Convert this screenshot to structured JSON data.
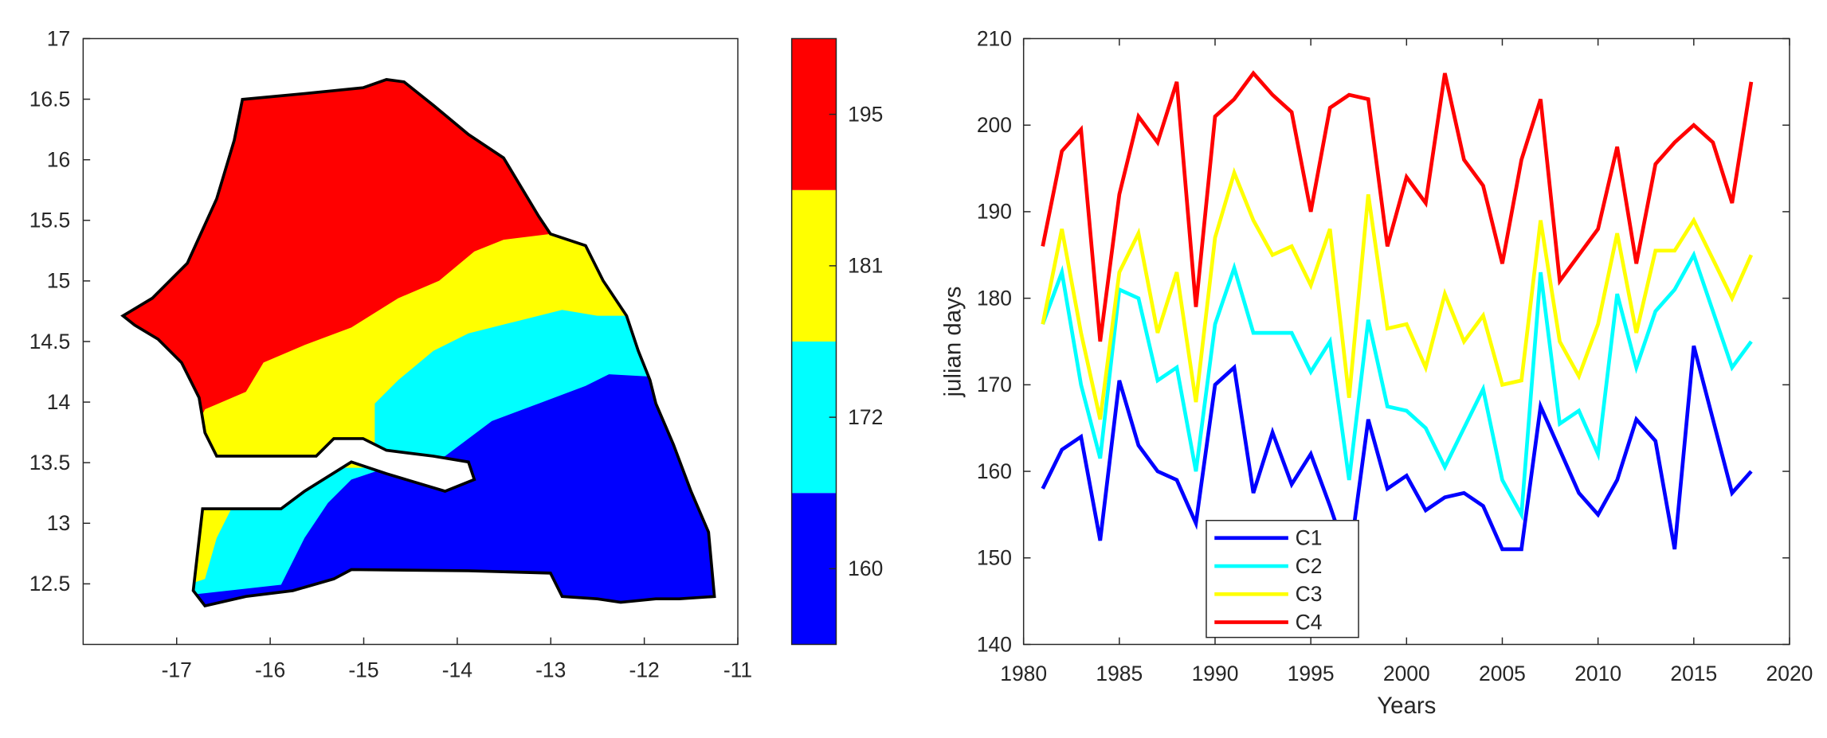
{
  "chart_data": [
    {
      "type": "heatmap",
      "title": "",
      "xlabel": "",
      "ylabel": "",
      "xlim": [
        -18,
        -11
      ],
      "ylim": [
        12,
        17
      ],
      "xticks": [
        "-17",
        "-16",
        "-15",
        "-14",
        "-13",
        "-12",
        "-11"
      ],
      "yticks": [
        "12.5",
        "13",
        "13.5",
        "14",
        "14.5",
        "15",
        "15.5",
        "16",
        "16.5",
        "17"
      ],
      "colorbar": {
        "levels": [
          {
            "label": "160",
            "color": "#0000ff"
          },
          {
            "label": "172",
            "color": "#00ffff"
          },
          {
            "label": "181",
            "color": "#ffff00"
          },
          {
            "label": "195",
            "color": "#ff0000"
          }
        ]
      }
    },
    {
      "type": "line",
      "title": "",
      "xlabel": "Years",
      "ylabel": "julian days",
      "xlim": [
        1980,
        2020
      ],
      "ylim": [
        140,
        210
      ],
      "xticks": [
        "1980",
        "1985",
        "1990",
        "1995",
        "2000",
        "2005",
        "2010",
        "2015",
        "2020"
      ],
      "yticks": [
        "140",
        "150",
        "160",
        "170",
        "180",
        "190",
        "200",
        "210"
      ],
      "legend": "bottom-left",
      "x": [
        1981,
        1982,
        1983,
        1984,
        1985,
        1986,
        1987,
        1988,
        1989,
        1990,
        1991,
        1992,
        1993,
        1994,
        1995,
        1996,
        1997,
        1998,
        1999,
        2000,
        2001,
        2002,
        2003,
        2004,
        2005,
        2006,
        2007,
        2008,
        2009,
        2010,
        2011,
        2012,
        2013,
        2014,
        2015,
        2016,
        2017,
        2018
      ],
      "series": [
        {
          "name": "C1",
          "color": "#0000ff",
          "values": [
            158,
            162.5,
            164,
            152,
            170.5,
            163,
            160,
            159,
            154,
            170,
            172,
            157.5,
            164.5,
            158.5,
            162,
            156,
            149.5,
            166,
            158,
            159.5,
            155.5,
            157,
            157.5,
            156,
            151,
            151,
            167.5,
            162.5,
            157.5,
            155,
            159,
            166,
            163.5,
            151,
            174.5,
            166,
            157.5,
            160
          ]
        },
        {
          "name": "C2",
          "color": "#00ffff",
          "values": [
            177,
            183,
            170,
            161.5,
            181,
            180,
            170.5,
            172,
            160,
            177,
            183.5,
            176,
            176,
            176,
            171.5,
            175,
            159,
            177.5,
            167.5,
            167,
            165,
            160.5,
            165,
            169.5,
            159,
            155,
            183,
            165.5,
            167,
            162,
            180.5,
            172,
            178.5,
            181,
            185,
            178.5,
            172,
            175
          ]
        },
        {
          "name": "C3",
          "color": "#ffff00",
          "values": [
            177,
            188,
            176,
            166,
            183,
            187.5,
            176,
            183,
            168,
            187,
            194.5,
            189,
            185,
            186,
            181.5,
            188,
            168.5,
            192,
            176.5,
            177,
            172,
            180.5,
            175,
            178,
            170,
            170.5,
            189,
            175,
            171,
            177,
            187.5,
            176,
            185.5,
            185.5,
            189,
            184.5,
            180,
            185
          ]
        },
        {
          "name": "C4",
          "color": "#ff0000",
          "values": [
            186,
            197,
            199.5,
            175,
            192,
            201,
            198,
            205,
            179,
            201,
            203,
            206,
            203.5,
            201.5,
            190,
            202,
            203.5,
            203,
            186,
            194,
            191,
            206,
            196,
            193,
            184,
            196,
            203,
            182,
            185,
            188,
            197.5,
            184,
            195.5,
            198,
            200,
            198,
            191,
            205
          ]
        }
      ]
    }
  ]
}
